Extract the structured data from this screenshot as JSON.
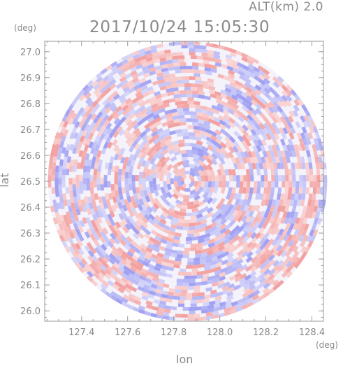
{
  "header": {
    "altitude_label": "ALT(km)  2.0",
    "timestamp": "2017/10/24 15:05:30"
  },
  "colors": {
    "positive": "#f08a8a",
    "negative": "#8a8af0",
    "axis": "#9a9a9a",
    "text": "#8a8a8a"
  },
  "chart_data": {
    "type": "heatmap",
    "title": "",
    "xlabel": "lon",
    "ylabel": "lat",
    "x_unit": "(deg)",
    "y_unit": "(deg)",
    "xlim": [
      127.24,
      128.45
    ],
    "ylim": [
      25.96,
      27.04
    ],
    "x_ticks": [
      127.4,
      127.6,
      127.8,
      128.0,
      128.2,
      128.4
    ],
    "x_tick_labels": [
      "127.4",
      "127.6",
      "127.8",
      "128.0",
      "128.2",
      "128.4"
    ],
    "y_ticks": [
      26.0,
      26.1,
      26.2,
      26.3,
      26.4,
      26.5,
      26.6,
      26.7,
      26.8,
      26.9,
      27.0
    ],
    "y_tick_labels": [
      "26.0",
      "26.1",
      "26.2",
      "26.3",
      "26.4",
      "26.5",
      "26.6",
      "26.7",
      "26.8",
      "26.9",
      "27.0"
    ],
    "center": [
      127.86,
      26.5
    ],
    "radius_lat_deg": 0.54,
    "colormap": "blue-white-red diverging",
    "grid": false
  }
}
